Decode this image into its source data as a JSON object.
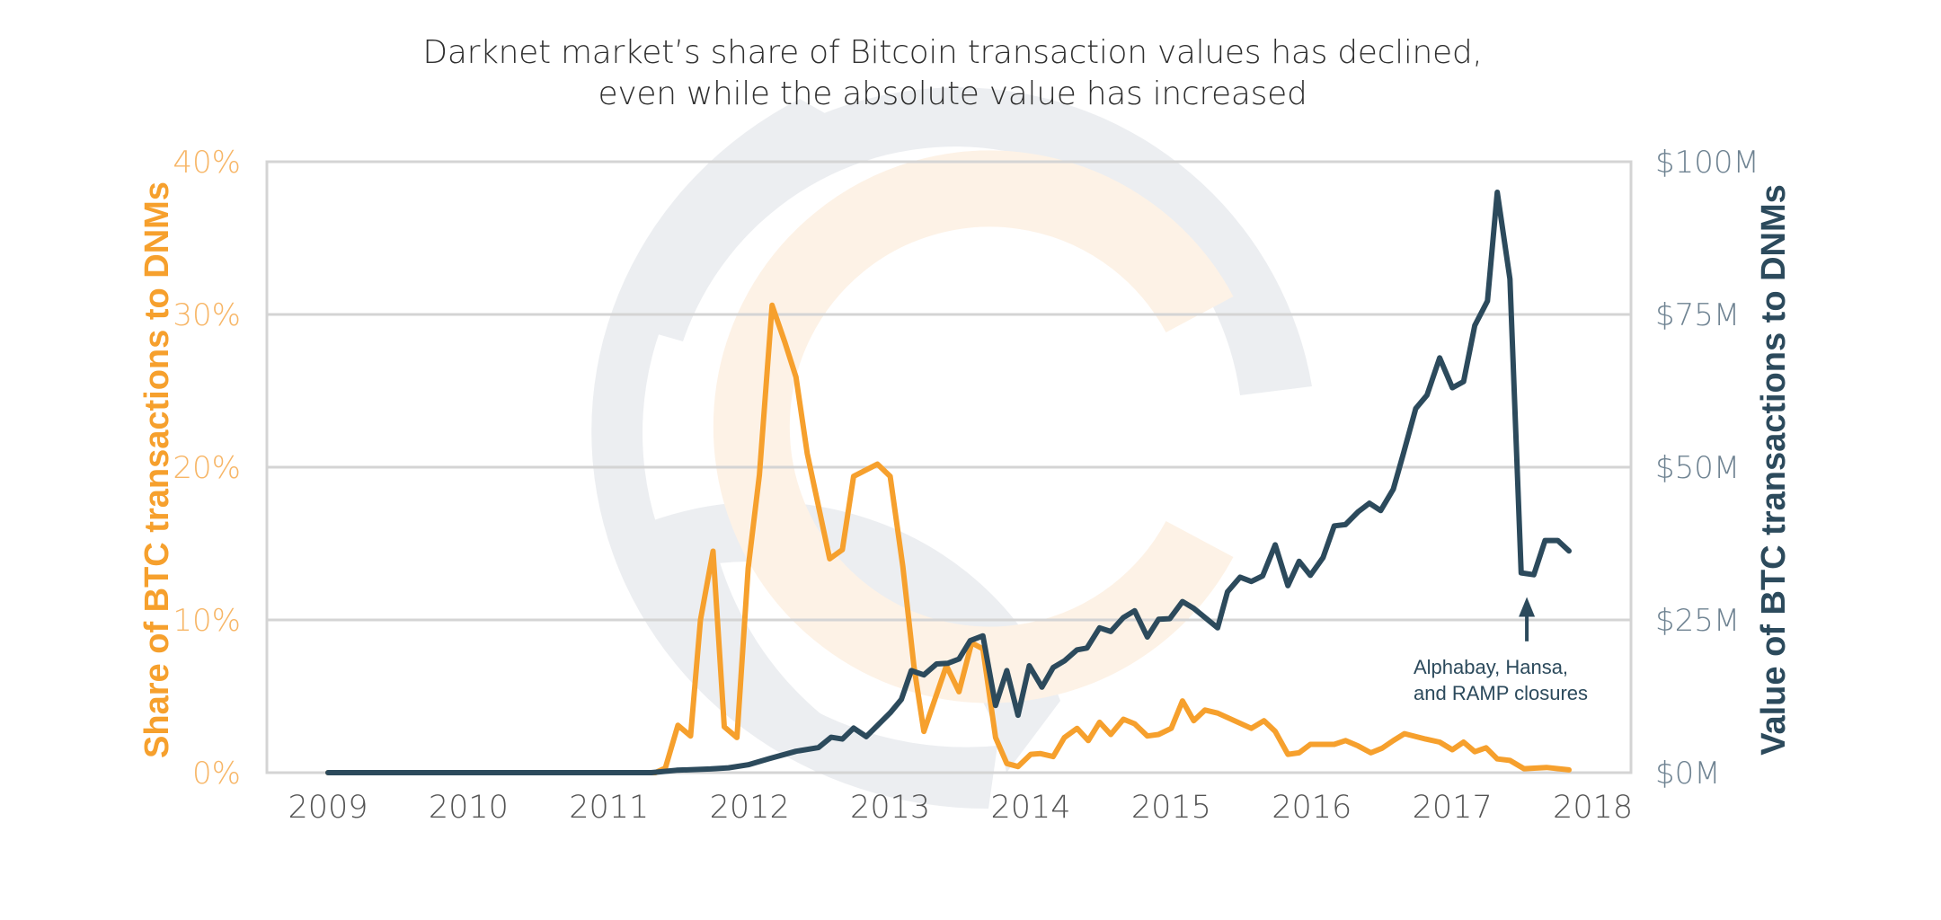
{
  "chart_data": {
    "type": "line",
    "title": [
      "Darknet market’s share of Bitcoin transaction values has declined,",
      "even while the absolute value has increased"
    ],
    "x_ticks": [
      "2009",
      "2010",
      "2011",
      "2012",
      "2013",
      "2014",
      "2015",
      "2016",
      "2017",
      "2018"
    ],
    "xlim": [
      2009,
      2018
    ],
    "y_left": {
      "label": "Share of BTC transactions to DNMs",
      "ticks": [
        "0%",
        "10%",
        "20%",
        "30%",
        "40%"
      ],
      "tick_values": [
        0,
        10,
        20,
        30,
        40
      ],
      "range": [
        0,
        40
      ],
      "unit": "%"
    },
    "y_right": {
      "label": "Value of BTC transactions to DNMs",
      "ticks": [
        "$0M",
        "$25M",
        "$50M",
        "$75M",
        "$100M"
      ],
      "tick_values": [
        0,
        25,
        50,
        75,
        100
      ],
      "range": [
        0,
        100
      ],
      "unit": "$M"
    },
    "grid": true,
    "series": [
      {
        "name": "Share of BTC transactions to DNMs",
        "axis": "left",
        "color": "#f6a02d",
        "points": [
          [
            2009.0,
            0
          ],
          [
            2011.33,
            0
          ],
          [
            2011.4,
            0.3
          ],
          [
            2011.49,
            3.1
          ],
          [
            2011.58,
            2.4
          ],
          [
            2011.65,
            10.0
          ],
          [
            2011.74,
            14.5
          ],
          [
            2011.82,
            3.0
          ],
          [
            2011.91,
            2.3
          ],
          [
            2011.99,
            13.4
          ],
          [
            2012.07,
            19.5
          ],
          [
            2012.16,
            30.6
          ],
          [
            2012.25,
            28.2
          ],
          [
            2012.33,
            25.9
          ],
          [
            2012.41,
            20.9
          ],
          [
            2012.57,
            14.0
          ],
          [
            2012.66,
            14.6
          ],
          [
            2012.74,
            19.4
          ],
          [
            2012.91,
            20.2
          ],
          [
            2013.0,
            19.4
          ],
          [
            2013.09,
            13.5
          ],
          [
            2013.17,
            6.9
          ],
          [
            2013.24,
            2.7
          ],
          [
            2013.4,
            7.0
          ],
          [
            2013.49,
            5.3
          ],
          [
            2013.58,
            8.5
          ],
          [
            2013.66,
            8.1
          ],
          [
            2013.75,
            2.3
          ],
          [
            2013.83,
            0.6
          ],
          [
            2013.91,
            0.4
          ],
          [
            2014.0,
            1.2
          ],
          [
            2014.07,
            1.25
          ],
          [
            2014.16,
            1.05
          ],
          [
            2014.24,
            2.3
          ],
          [
            2014.33,
            2.9
          ],
          [
            2014.41,
            2.1
          ],
          [
            2014.49,
            3.3
          ],
          [
            2014.57,
            2.5
          ],
          [
            2014.66,
            3.5
          ],
          [
            2014.74,
            3.2
          ],
          [
            2014.83,
            2.4
          ],
          [
            2014.91,
            2.5
          ],
          [
            2015.0,
            2.9
          ],
          [
            2015.08,
            4.7
          ],
          [
            2015.16,
            3.4
          ],
          [
            2015.24,
            4.1
          ],
          [
            2015.33,
            3.9
          ],
          [
            2015.57,
            2.9
          ],
          [
            2015.66,
            3.4
          ],
          [
            2015.74,
            2.7
          ],
          [
            2015.83,
            1.2
          ],
          [
            2015.91,
            1.3
          ],
          [
            2015.99,
            1.85
          ],
          [
            2016.16,
            1.85
          ],
          [
            2016.24,
            2.1
          ],
          [
            2016.33,
            1.75
          ],
          [
            2016.42,
            1.3
          ],
          [
            2016.5,
            1.6
          ],
          [
            2016.58,
            2.1
          ],
          [
            2016.66,
            2.55
          ],
          [
            2016.81,
            2.2
          ],
          [
            2016.91,
            2.0
          ],
          [
            2017.0,
            1.5
          ],
          [
            2017.08,
            2.0
          ],
          [
            2017.16,
            1.37
          ],
          [
            2017.24,
            1.63
          ],
          [
            2017.32,
            0.9
          ],
          [
            2017.41,
            0.8
          ],
          [
            2017.51,
            0.26
          ],
          [
            2017.67,
            0.34
          ],
          [
            2017.83,
            0.18
          ]
        ]
      },
      {
        "name": "Value of BTC transactions to DNMs",
        "axis": "right",
        "color": "#2c4a5c",
        "points": [
          [
            2009.0,
            0
          ],
          [
            2011.3,
            0
          ],
          [
            2011.48,
            0.4
          ],
          [
            2011.72,
            0.6
          ],
          [
            2011.85,
            0.8
          ],
          [
            2011.99,
            1.3
          ],
          [
            2012.14,
            2.3
          ],
          [
            2012.33,
            3.5
          ],
          [
            2012.49,
            4.1
          ],
          [
            2012.58,
            5.8
          ],
          [
            2012.66,
            5.5
          ],
          [
            2012.74,
            7.3
          ],
          [
            2012.83,
            5.9
          ],
          [
            2013.0,
            9.8
          ],
          [
            2013.08,
            12.0
          ],
          [
            2013.15,
            16.7
          ],
          [
            2013.24,
            16.0
          ],
          [
            2013.33,
            17.8
          ],
          [
            2013.41,
            17.9
          ],
          [
            2013.49,
            18.6
          ],
          [
            2013.57,
            21.6
          ],
          [
            2013.66,
            22.4
          ],
          [
            2013.75,
            11.0
          ],
          [
            2013.83,
            16.7
          ],
          [
            2013.91,
            9.4
          ],
          [
            2013.99,
            17.5
          ],
          [
            2014.08,
            14.0
          ],
          [
            2014.16,
            17.2
          ],
          [
            2014.24,
            18.3
          ],
          [
            2014.33,
            20.1
          ],
          [
            2014.4,
            20.4
          ],
          [
            2014.49,
            23.7
          ],
          [
            2014.57,
            23.1
          ],
          [
            2014.66,
            25.4
          ],
          [
            2014.74,
            26.5
          ],
          [
            2014.83,
            22.2
          ],
          [
            2014.91,
            25.1
          ],
          [
            2014.99,
            25.2
          ],
          [
            2015.08,
            28.0
          ],
          [
            2015.16,
            26.9
          ],
          [
            2015.33,
            23.7
          ],
          [
            2015.4,
            29.6
          ],
          [
            2015.49,
            32.0
          ],
          [
            2015.57,
            31.3
          ],
          [
            2015.65,
            32.2
          ],
          [
            2015.74,
            37.3
          ],
          [
            2015.83,
            30.6
          ],
          [
            2015.91,
            34.6
          ],
          [
            2015.99,
            32.3
          ],
          [
            2016.08,
            35.2
          ],
          [
            2016.16,
            40.4
          ],
          [
            2016.24,
            40.6
          ],
          [
            2016.33,
            42.7
          ],
          [
            2016.41,
            44.1
          ],
          [
            2016.49,
            42.9
          ],
          [
            2016.58,
            46.4
          ],
          [
            2016.65,
            52.1
          ],
          [
            2016.74,
            59.6
          ],
          [
            2016.82,
            61.8
          ],
          [
            2016.91,
            67.9
          ],
          [
            2017.0,
            63.0
          ],
          [
            2017.08,
            64.0
          ],
          [
            2017.16,
            73.2
          ],
          [
            2017.25,
            77.2
          ],
          [
            2017.32,
            95.0
          ],
          [
            2017.41,
            80.8
          ],
          [
            2017.49,
            32.7
          ],
          [
            2017.58,
            32.4
          ],
          [
            2017.66,
            38.0
          ],
          [
            2017.75,
            38.0
          ],
          [
            2017.83,
            36.3
          ]
        ]
      }
    ],
    "annotations": [
      {
        "text": [
          "Alphabay, Hansa,",
          "and RAMP closures"
        ],
        "x": 2017.53,
        "arrow_to": 11.5,
        "arrow_from": 8.6,
        "axis": "left",
        "color": "#2c4a5c"
      }
    ],
    "colors": {
      "left_axis": "#f6a02d",
      "left_ticks": "#f7b667",
      "right_axis": "#2c4a5c",
      "right_ticks": "#6f8392",
      "grid": "#d4d4d4",
      "title": "#2f2f2f",
      "x_ticks": "#555555"
    }
  }
}
